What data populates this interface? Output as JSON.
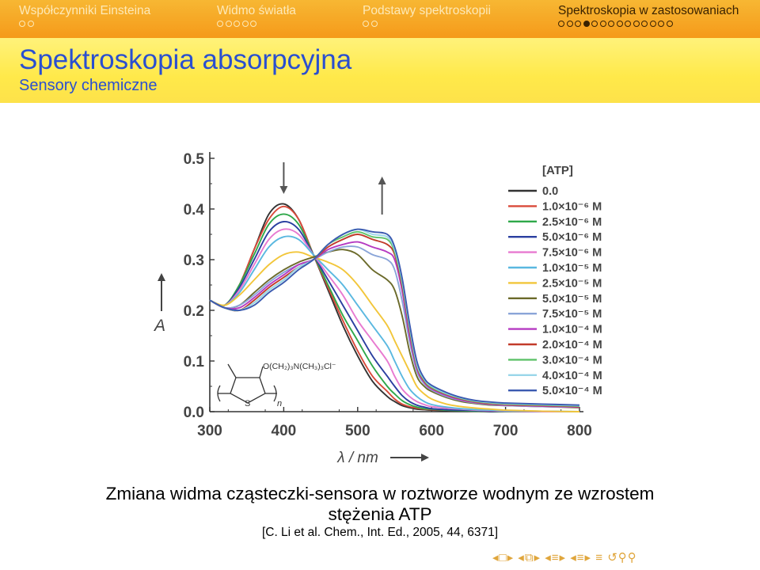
{
  "nav": {
    "sections": [
      {
        "label": "Współczynniki Einsteina",
        "dots": 2,
        "filled": -1,
        "active": false
      },
      {
        "label": "Widmo światła",
        "dots": 5,
        "filled": -1,
        "active": false
      },
      {
        "label": "Podstawy spektroskopii",
        "dots": 2,
        "filled": -1,
        "active": false
      },
      {
        "label": "Spektroskopia w zastosowaniach",
        "dots": 14,
        "filled": 3,
        "active": true
      }
    ]
  },
  "frame": {
    "title": "Spektroskopia absorpcyjna",
    "subtitle": "Sensory chemiczne"
  },
  "caption": {
    "line1": "Zmiana widma cząsteczki-sensora w roztworze wodnym ze wzrostem",
    "line2": "stężenia ATP",
    "ref": "[C. Li et al. Chem., Int. Ed., 2005, 44, 6371]"
  },
  "chart_data": {
    "type": "line",
    "xlabel": "λ / nm",
    "ylabel": "A",
    "xlim": [
      300,
      800
    ],
    "ylim": [
      0,
      0.5
    ],
    "xticks": [
      "300",
      "400",
      "500",
      "600",
      "700",
      "800"
    ],
    "yticks": [
      "0.0",
      "0.1",
      "0.2",
      "0.3",
      "0.4",
      "0.5"
    ],
    "legend_title": "[ATP]",
    "legend_position": "right",
    "structure_labels": [
      "O(CH₂)₃N(CH₃)₃Cl⁻",
      "S",
      "n"
    ],
    "x": [
      300,
      320,
      340,
      360,
      380,
      400,
      420,
      440,
      460,
      480,
      500,
      520,
      540,
      550,
      560,
      570,
      580,
      590,
      600,
      620,
      640,
      660,
      680,
      700,
      750,
      800
    ],
    "series": [
      {
        "name": "0.0",
        "color": "#333333",
        "values": [
          0.22,
          0.21,
          0.25,
          0.32,
          0.39,
          0.41,
          0.38,
          0.31,
          0.24,
          0.17,
          0.11,
          0.06,
          0.03,
          0.02,
          0.012,
          0.008,
          0.005,
          0.004,
          0.003,
          0.002,
          0.001,
          0.001,
          0.0,
          0.0,
          0.0,
          0.0
        ]
      },
      {
        "name": "1.0×10⁻⁶ M",
        "color": "#d94a3a",
        "values": [
          0.22,
          0.21,
          0.25,
          0.32,
          0.38,
          0.405,
          0.38,
          0.31,
          0.245,
          0.18,
          0.12,
          0.07,
          0.04,
          0.025,
          0.015,
          0.01,
          0.007,
          0.005,
          0.004,
          0.003,
          0.002,
          0.001,
          0.001,
          0.0,
          0.0,
          0.0
        ]
      },
      {
        "name": "2.5×10⁻⁶ M",
        "color": "#2fa84a",
        "values": [
          0.22,
          0.21,
          0.25,
          0.31,
          0.37,
          0.39,
          0.37,
          0.31,
          0.25,
          0.19,
          0.14,
          0.09,
          0.05,
          0.035,
          0.022,
          0.014,
          0.009,
          0.006,
          0.005,
          0.003,
          0.002,
          0.001,
          0.001,
          0.0,
          0.0,
          0.0
        ]
      },
      {
        "name": "5.0×10⁻⁶ M",
        "color": "#2a3fa0",
        "values": [
          0.22,
          0.21,
          0.245,
          0.3,
          0.355,
          0.375,
          0.36,
          0.31,
          0.26,
          0.21,
          0.16,
          0.11,
          0.07,
          0.05,
          0.032,
          0.02,
          0.013,
          0.009,
          0.006,
          0.004,
          0.003,
          0.002,
          0.001,
          0.001,
          0.0,
          0.0
        ]
      },
      {
        "name": "7.5×10⁻⁶ M",
        "color": "#e87ad0",
        "values": [
          0.22,
          0.21,
          0.24,
          0.29,
          0.34,
          0.36,
          0.35,
          0.31,
          0.27,
          0.23,
          0.18,
          0.14,
          0.1,
          0.07,
          0.045,
          0.03,
          0.02,
          0.014,
          0.01,
          0.007,
          0.005,
          0.003,
          0.002,
          0.001,
          0.0,
          0.0
        ]
      },
      {
        "name": "1.0×10⁻⁵ M",
        "color": "#5ab8e0",
        "values": [
          0.22,
          0.21,
          0.235,
          0.28,
          0.325,
          0.345,
          0.34,
          0.31,
          0.28,
          0.25,
          0.21,
          0.17,
          0.13,
          0.1,
          0.07,
          0.045,
          0.03,
          0.02,
          0.014,
          0.009,
          0.006,
          0.004,
          0.003,
          0.002,
          0.001,
          0.0
        ]
      },
      {
        "name": "2.5×10⁻⁵ M",
        "color": "#f2c63a",
        "values": [
          0.22,
          0.21,
          0.23,
          0.26,
          0.29,
          0.31,
          0.315,
          0.305,
          0.295,
          0.28,
          0.25,
          0.21,
          0.17,
          0.14,
          0.11,
          0.08,
          0.05,
          0.035,
          0.025,
          0.015,
          0.01,
          0.007,
          0.005,
          0.003,
          0.001,
          0.0
        ]
      },
      {
        "name": "5.0×10⁻⁵ M",
        "color": "#6b6a2a",
        "values": [
          0.22,
          0.205,
          0.21,
          0.235,
          0.26,
          0.28,
          0.295,
          0.305,
          0.315,
          0.32,
          0.31,
          0.28,
          0.26,
          0.24,
          0.19,
          0.12,
          0.07,
          0.05,
          0.04,
          0.028,
          0.02,
          0.016,
          0.013,
          0.012,
          0.01,
          0.008
        ]
      },
      {
        "name": "7.5×10⁻⁵ M",
        "color": "#8aa5d8",
        "values": [
          0.22,
          0.205,
          0.21,
          0.23,
          0.255,
          0.275,
          0.29,
          0.3,
          0.315,
          0.325,
          0.325,
          0.31,
          0.3,
          0.28,
          0.22,
          0.14,
          0.08,
          0.055,
          0.043,
          0.03,
          0.022,
          0.017,
          0.014,
          0.012,
          0.01,
          0.009
        ]
      },
      {
        "name": "1.0×10⁻⁴ M",
        "color": "#b53ac2",
        "values": [
          0.22,
          0.205,
          0.205,
          0.225,
          0.25,
          0.27,
          0.29,
          0.3,
          0.32,
          0.33,
          0.335,
          0.325,
          0.315,
          0.3,
          0.24,
          0.15,
          0.085,
          0.058,
          0.045,
          0.032,
          0.023,
          0.018,
          0.015,
          0.013,
          0.011,
          0.009
        ]
      },
      {
        "name": "2.0×10⁻⁴ M",
        "color": "#c23b2a",
        "values": [
          0.22,
          0.205,
          0.2,
          0.22,
          0.245,
          0.265,
          0.285,
          0.3,
          0.325,
          0.34,
          0.35,
          0.34,
          0.33,
          0.31,
          0.25,
          0.16,
          0.09,
          0.06,
          0.047,
          0.034,
          0.025,
          0.019,
          0.016,
          0.014,
          0.012,
          0.01
        ]
      },
      {
        "name": "3.0×10⁻⁴ M",
        "color": "#5fc26a",
        "values": [
          0.22,
          0.205,
          0.2,
          0.215,
          0.24,
          0.26,
          0.285,
          0.3,
          0.33,
          0.345,
          0.355,
          0.345,
          0.34,
          0.315,
          0.255,
          0.165,
          0.092,
          0.062,
          0.048,
          0.035,
          0.026,
          0.02,
          0.017,
          0.015,
          0.013,
          0.011
        ]
      },
      {
        "name": "4.0×10⁻⁴ M",
        "color": "#9ad6ea",
        "values": [
          0.22,
          0.205,
          0.2,
          0.215,
          0.24,
          0.26,
          0.285,
          0.3,
          0.33,
          0.35,
          0.36,
          0.35,
          0.345,
          0.32,
          0.26,
          0.17,
          0.095,
          0.064,
          0.05,
          0.036,
          0.027,
          0.021,
          0.018,
          0.016,
          0.014,
          0.012
        ]
      },
      {
        "name": "5.0×10⁻⁴ M",
        "color": "#3b5ab0",
        "values": [
          0.22,
          0.205,
          0.2,
          0.21,
          0.235,
          0.255,
          0.28,
          0.3,
          0.33,
          0.35,
          0.36,
          0.355,
          0.35,
          0.325,
          0.265,
          0.175,
          0.1,
          0.066,
          0.052,
          0.038,
          0.028,
          0.022,
          0.019,
          0.017,
          0.015,
          0.013
        ]
      }
    ]
  }
}
